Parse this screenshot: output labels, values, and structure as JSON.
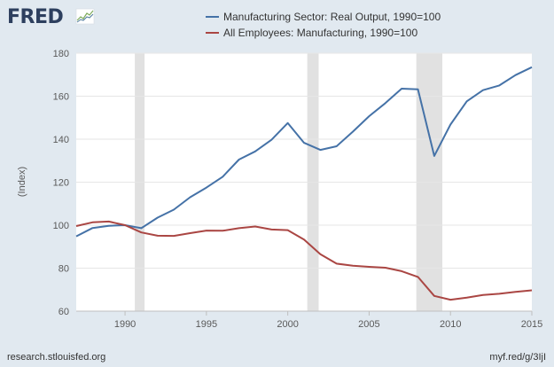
{
  "header": {
    "logo_text": "FRED",
    "logo_mark": "chart-line-logo"
  },
  "legend": [
    {
      "label": "Manufacturing Sector: Real Output, 1990=100",
      "color": "#4572a7"
    },
    {
      "label": "All Employees: Manufacturing, 1990=100",
      "color": "#aa4643"
    }
  ],
  "footer": {
    "source": "research.stlouisfed.org",
    "shortlink": "myf.red/g/3IjI"
  },
  "chart_data": {
    "type": "line",
    "title": "",
    "xlabel": "",
    "ylabel": "(Index)",
    "xlim": [
      1987,
      2015
    ],
    "ylim": [
      60,
      180
    ],
    "yticks": [
      60,
      80,
      100,
      120,
      140,
      160,
      180
    ],
    "xticks": [
      1990,
      1995,
      2000,
      2005,
      2010,
      2015
    ],
    "grid": true,
    "legend_position": "top",
    "recessions": [
      [
        1990.6,
        1991.2
      ],
      [
        2001.2,
        2001.9
      ],
      [
        2007.9,
        2009.5
      ]
    ],
    "x": [
      1987,
      1988,
      1989,
      1990,
      1991,
      1992,
      1993,
      1994,
      1995,
      1996,
      1997,
      1998,
      1999,
      2000,
      2001,
      2002,
      2003,
      2004,
      2005,
      2006,
      2007,
      2008,
      2009,
      2010,
      2011,
      2012,
      2013,
      2014,
      2015
    ],
    "series": [
      {
        "name": "Manufacturing Sector: Real Output, 1990=100",
        "color": "#4572a7",
        "values": [
          94.8,
          98.7,
          99.7,
          100,
          98.6,
          103.5,
          107.2,
          113,
          117.5,
          122.5,
          130.5,
          134.3,
          139.7,
          147.5,
          138.3,
          135,
          136.7,
          143.5,
          150.7,
          156.8,
          163.5,
          163.2,
          132.2,
          146.8,
          157.6,
          162.8,
          165,
          169.8,
          173.5
        ]
      },
      {
        "name": "All Employees: Manufacturing, 1990=100",
        "color": "#aa4643",
        "values": [
          99.6,
          101.3,
          101.7,
          100,
          96.6,
          95.1,
          95,
          96.3,
          97.5,
          97.4,
          98.6,
          99.4,
          98,
          97.7,
          93.3,
          86.5,
          82.1,
          81.1,
          80.6,
          80.2,
          78.6,
          75.9,
          67.1,
          65.3,
          66.3,
          67.5,
          68.1,
          69,
          69.7
        ]
      }
    ]
  }
}
